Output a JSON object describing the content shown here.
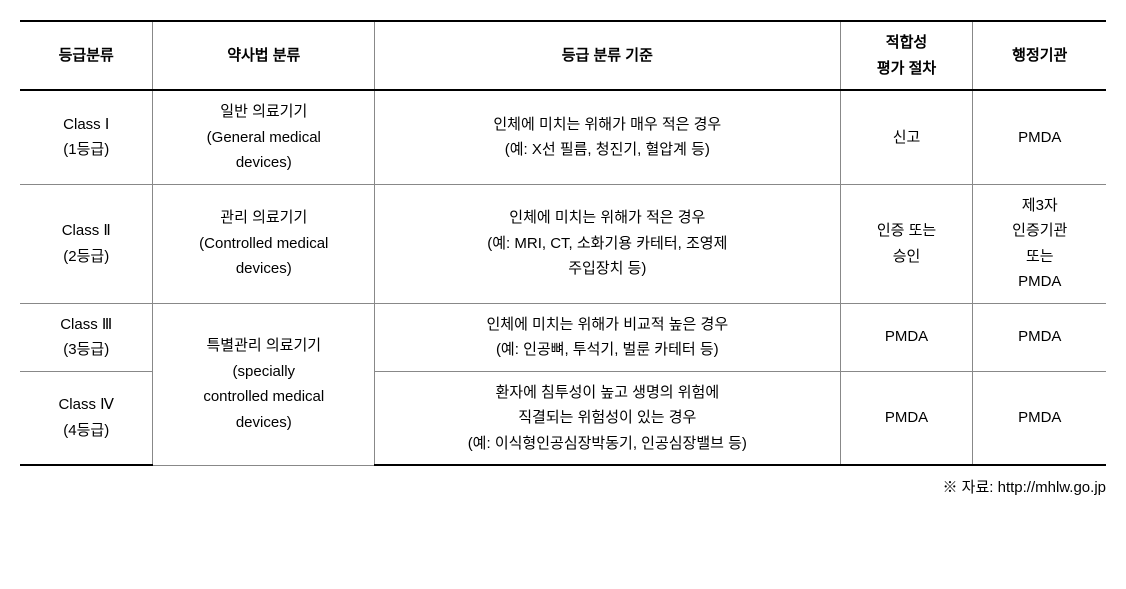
{
  "table": {
    "columns": [
      {
        "label": "등급분류",
        "widthClass": "col-class"
      },
      {
        "label": "약사법 분류",
        "widthClass": "col-law"
      },
      {
        "label": "등급 분류 기준",
        "widthClass": "col-criteria"
      },
      {
        "label": "적합성\n평가 절차",
        "widthClass": "col-eval"
      },
      {
        "label": "행정기관",
        "widthClass": "col-agency"
      }
    ],
    "headerLines": {
      "col3_line1": "적합성",
      "col3_line2": "평가 절차"
    },
    "rows": [
      {
        "classLine1": "Class Ⅰ",
        "classLine2": "(1등급)",
        "lawLine1": "일반 의료기기",
        "lawLine2": "(General medical",
        "lawLine3": "devices)",
        "criteriaLine1": "인체에 미치는 위해가 매우 적은 경우",
        "criteriaLine2": "(예: X선 필름, 청진기, 혈압계 등)",
        "eval": "신고",
        "agency": "PMDA"
      },
      {
        "classLine1": "Class Ⅱ",
        "classLine2": "(2등급)",
        "lawLine1": "관리 의료기기",
        "lawLine2": "(Controlled medical",
        "lawLine3": "devices)",
        "criteriaLine1": "인체에 미치는 위해가 적은 경우",
        "criteriaLine2": "(예: MRI, CT, 소화기용 카테터, 조영제",
        "criteriaLine3": "주입장치 등)",
        "evalLine1": "인증 또는",
        "evalLine2": "승인",
        "agencyLine1": "제3자",
        "agencyLine2": "인증기관",
        "agencyLine3": "또는",
        "agencyLine4": "PMDA"
      },
      {
        "classLine1": "Class Ⅲ",
        "classLine2": "(3등급)",
        "lawMergedLine1": "특별관리 의료기기",
        "lawMergedLine2": "(specially",
        "lawMergedLine3": "controlled medical",
        "lawMergedLine4": "devices)",
        "criteriaLine1": "인체에 미치는 위해가 비교적 높은 경우",
        "criteriaLine2": "(예: 인공뼈, 투석기, 벌룬 카테터 등)",
        "eval": "PMDA",
        "agency": "PMDA"
      },
      {
        "classLine1": "Class Ⅳ",
        "classLine2": "(4등급)",
        "criteriaLine1": "환자에 침투성이 높고 생명의 위험에",
        "criteriaLine2": "직결되는 위험성이 있는 경우",
        "criteriaLine3": "(예: 이식형인공심장박동기, 인공심장밸브 등)",
        "eval": "PMDA",
        "agency": "PMDA"
      }
    ]
  },
  "footnote": "※ 자료: http://mhlw.go.jp",
  "styling": {
    "fontSize": 15,
    "lineHeight": 1.7,
    "borderColorThick": "#000000",
    "borderColorThin": "#888888",
    "backgroundColor": "#ffffff",
    "textColor": "#000000"
  }
}
